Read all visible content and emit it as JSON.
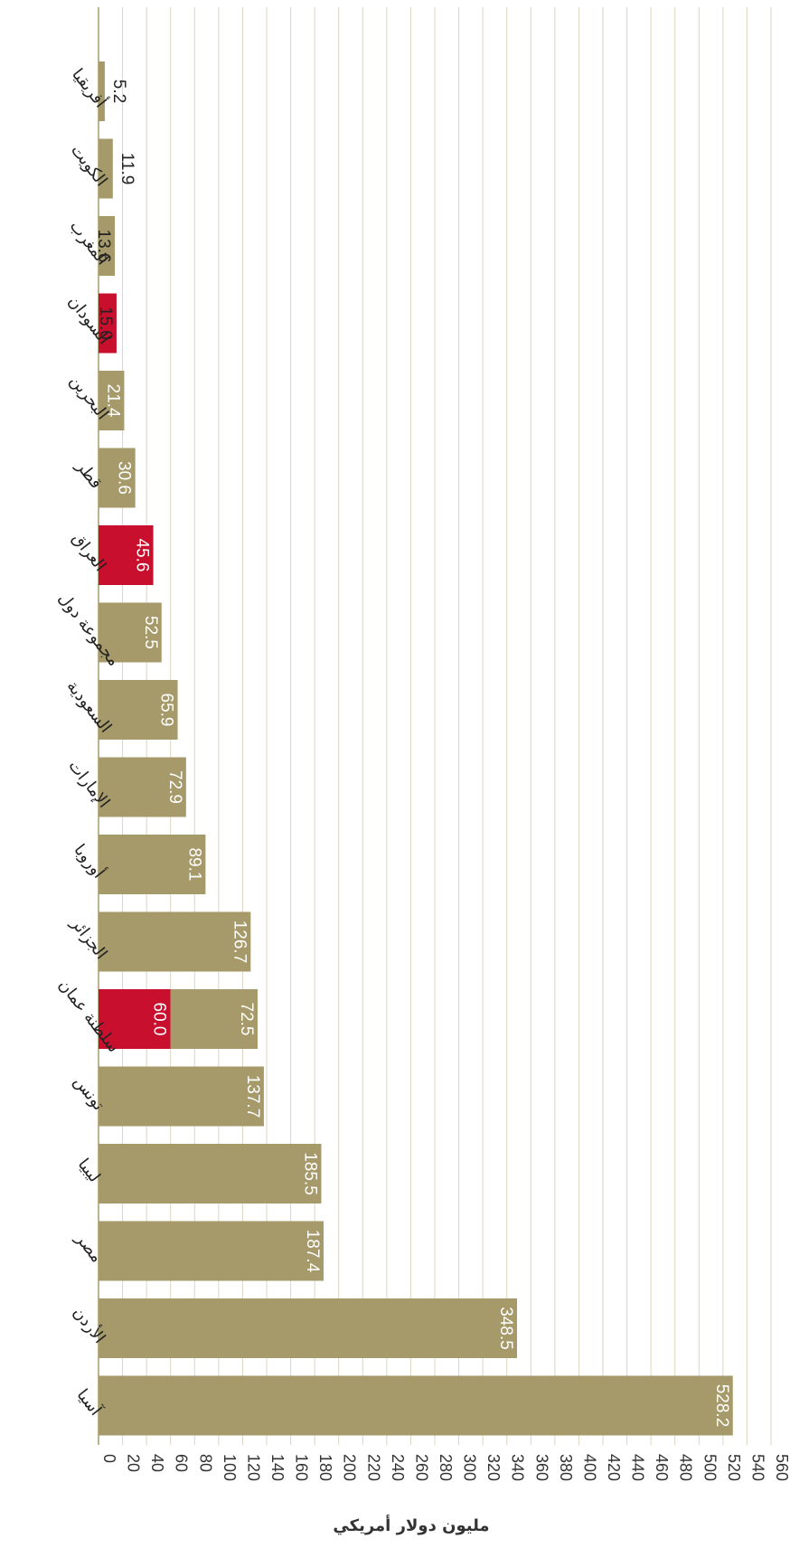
{
  "chart_data": {
    "type": "bar",
    "orientation": "horizontal",
    "xlabel": "مليون دولار أمريكي",
    "xlim": [
      0,
      560
    ],
    "xticks": [
      0,
      20,
      40,
      60,
      80,
      100,
      120,
      140,
      160,
      180,
      200,
      220,
      240,
      260,
      280,
      300,
      320,
      340,
      360,
      380,
      400,
      420,
      440,
      460,
      480,
      500,
      520,
      540,
      560
    ],
    "grid": true,
    "legend": "none",
    "colors": {
      "default": "#a69a6a",
      "highlight": "#c8102e",
      "grid": "#dcd6bf"
    },
    "categories": [
      "أفريقيا",
      "الكويت",
      "المغرب",
      "السودان",
      "البحرين",
      "قطر",
      "العراق",
      "مجموعة دول",
      "السعودية",
      "الإمارات",
      "أوروبا",
      "الجزائر",
      "سلطنة عمان",
      "تونس",
      "ليبيا",
      "مصر",
      "الأردن",
      "آسيا"
    ],
    "bars": [
      {
        "category": "أفريقيا",
        "segments": [
          {
            "value": 5.2,
            "label": "5.2",
            "color": "#a69a6a"
          }
        ]
      },
      {
        "category": "الكويت",
        "segments": [
          {
            "value": 11.9,
            "label": "11.9",
            "color": "#a69a6a"
          }
        ]
      },
      {
        "category": "المغرب",
        "segments": [
          {
            "value": 13.6,
            "label": "13.6",
            "color": "#a69a6a"
          }
        ]
      },
      {
        "category": "السودان",
        "segments": [
          {
            "value": 15.0,
            "label": "15.0",
            "color": "#c8102e"
          }
        ]
      },
      {
        "category": "البحرين",
        "segments": [
          {
            "value": 21.4,
            "label": "21.4",
            "color": "#a69a6a"
          }
        ]
      },
      {
        "category": "قطر",
        "segments": [
          {
            "value": 30.6,
            "label": "30.6",
            "color": "#a69a6a"
          }
        ]
      },
      {
        "category": "العراق",
        "segments": [
          {
            "value": 45.6,
            "label": "45.6",
            "color": "#c8102e"
          }
        ]
      },
      {
        "category": "مجموعة دول",
        "segments": [
          {
            "value": 52.5,
            "label": "52.5",
            "color": "#a69a6a"
          }
        ]
      },
      {
        "category": "السعودية",
        "segments": [
          {
            "value": 65.9,
            "label": "65.9",
            "color": "#a69a6a"
          }
        ]
      },
      {
        "category": "الإمارات",
        "segments": [
          {
            "value": 72.9,
            "label": "72.9",
            "color": "#a69a6a"
          }
        ]
      },
      {
        "category": "أوروبا",
        "segments": [
          {
            "value": 89.1,
            "label": "89.1",
            "color": "#a69a6a"
          }
        ]
      },
      {
        "category": "الجزائر",
        "segments": [
          {
            "value": 126.7,
            "label": "126.7",
            "color": "#a69a6a"
          }
        ]
      },
      {
        "category": "سلطنة عمان",
        "segments": [
          {
            "value": 60.0,
            "label": "60.0",
            "color": "#c8102e"
          },
          {
            "value": 72.5,
            "label": "72.5",
            "color": "#a69a6a"
          }
        ]
      },
      {
        "category": "تونس",
        "segments": [
          {
            "value": 137.7,
            "label": "137.7",
            "color": "#a69a6a"
          }
        ]
      },
      {
        "category": "ليبيا",
        "segments": [
          {
            "value": 185.5,
            "label": "185.5",
            "color": "#a69a6a"
          }
        ]
      },
      {
        "category": "مصر",
        "segments": [
          {
            "value": 187.4,
            "label": "187.4",
            "color": "#a69a6a"
          }
        ]
      },
      {
        "category": "الأردن",
        "segments": [
          {
            "value": 348.5,
            "label": "348.5",
            "color": "#a69a6a"
          }
        ]
      },
      {
        "category": "آسيا",
        "segments": [
          {
            "value": 528.2,
            "label": "528.2",
            "color": "#a69a6a"
          }
        ]
      }
    ]
  }
}
